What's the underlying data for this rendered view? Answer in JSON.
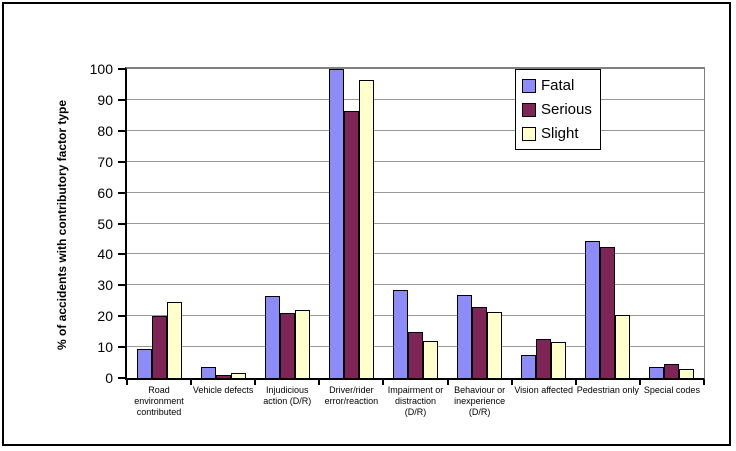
{
  "window": {
    "background": "#FFFFFF",
    "border_color": "#000000"
  },
  "chart_data": {
    "type": "bar",
    "title": "",
    "xlabel": "",
    "ylabel": "% of accidents with contributory factor type",
    "ylim": [
      0,
      100
    ],
    "ytick_step": 10,
    "grid": true,
    "legend_position": "top-right",
    "categories": [
      "Road environment contributed",
      "Vehicle defects",
      "Injudicious action (D/R)",
      "Driver/rider error/reaction",
      "Impairment or distraction (D/R)",
      "Behaviour or inexperience (D/R)",
      "Vision affected",
      "Pedestrian only",
      "Special codes"
    ],
    "category_label_lines": [
      [
        "Road",
        "environment",
        "contributed"
      ],
      [
        "Vehicle defects"
      ],
      [
        "Injudicious",
        "action (D/R)"
      ],
      [
        "Driver/rider",
        "error/reaction"
      ],
      [
        "Impairment or",
        "distraction",
        "(D/R)"
      ],
      [
        "Behaviour or",
        "inexperience",
        "(D/R)"
      ],
      [
        "Vision affected"
      ],
      [
        "Pedestrian only"
      ],
      [
        "Special codes"
      ]
    ],
    "series": [
      {
        "name": "Fatal",
        "color": "#8C8CF8",
        "values": [
          9.5,
          3.5,
          26.5,
          100,
          28.5,
          27,
          7.5,
          44.5,
          3.5
        ]
      },
      {
        "name": "Serious",
        "color": "#7E2456",
        "values": [
          20,
          1,
          21,
          86.5,
          15,
          23,
          12.5,
          42.5,
          4.5
        ]
      },
      {
        "name": "Slight",
        "color": "#FFFFCC",
        "values": [
          24.5,
          1.5,
          22,
          96.5,
          12,
          21.5,
          11.5,
          20.5,
          3
        ]
      }
    ],
    "colors": {
      "gridline": "#999999",
      "plot_border": "#808080",
      "axis": "#000000",
      "bar_outline": "#000000",
      "legend_border": "#000000"
    }
  }
}
